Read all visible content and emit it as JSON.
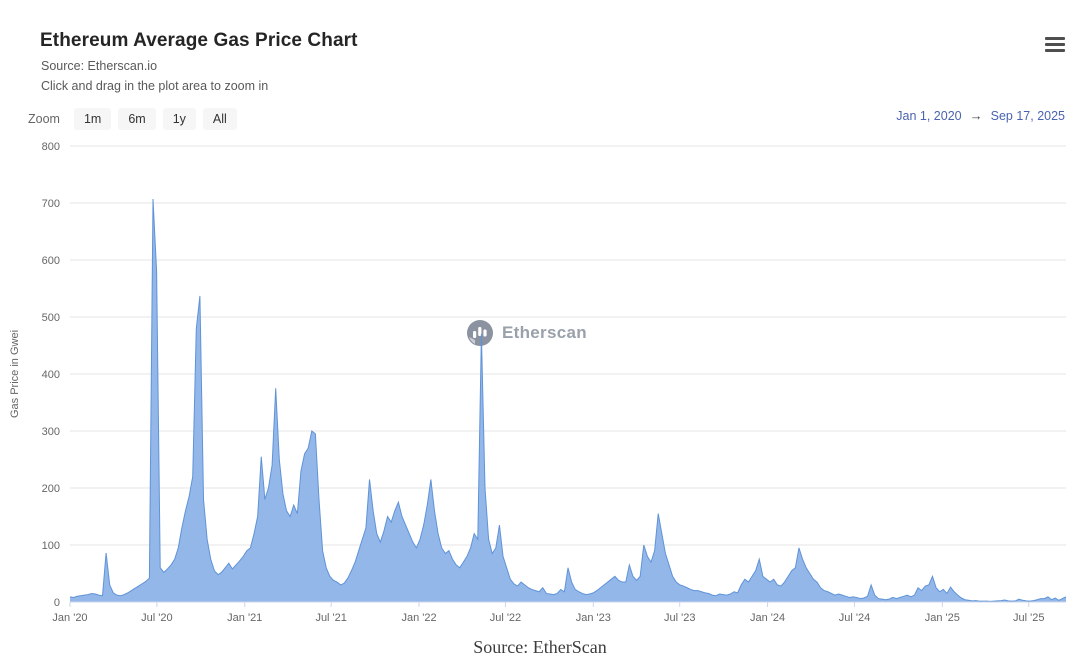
{
  "header": {
    "title": "Ethereum Average Gas Price Chart",
    "source_line": "Source: Etherscan.io",
    "hint_line": "Click and drag in the plot area to zoom in"
  },
  "toolbar": {
    "zoom_label": "Zoom",
    "buttons": [
      "1m",
      "6m",
      "1y",
      "All"
    ],
    "date_from": "Jan 1, 2020",
    "arrow": "→",
    "date_to": "Sep 17, 2025",
    "date_link_color": "#4a63af"
  },
  "watermark": {
    "text": "Etherscan"
  },
  "footer": {
    "source_text": "Source: EtherScan"
  },
  "chart_data": {
    "type": "area",
    "title": "Ethereum Average Gas Price Chart",
    "xlabel": "",
    "ylabel": "Gas Price in Gwei",
    "ylim": [
      0,
      800
    ],
    "yticks": [
      0,
      100,
      200,
      300,
      400,
      500,
      600,
      700,
      800
    ],
    "grid": true,
    "legend": false,
    "x_range": [
      "Jan 1, 2020",
      "Sep 17, 2025"
    ],
    "total_days": 2086,
    "xticks": [
      {
        "label": "Jan '20",
        "day": 0
      },
      {
        "label": "Jul '20",
        "day": 182
      },
      {
        "label": "Jan '21",
        "day": 366
      },
      {
        "label": "Jul '21",
        "day": 547
      },
      {
        "label": "Jan '22",
        "day": 731
      },
      {
        "label": "Jul '22",
        "day": 912
      },
      {
        "label": "Jan '23",
        "day": 1096
      },
      {
        "label": "Jul '23",
        "day": 1277
      },
      {
        "label": "Jan '24",
        "day": 1461
      },
      {
        "label": "Jul '24",
        "day": 1643
      },
      {
        "label": "Jan '25",
        "day": 1827
      },
      {
        "label": "Jul '25",
        "day": 2008
      }
    ],
    "colors": {
      "line": "#5f93d8",
      "fill": "#93b7e8",
      "grid": "#e6e6e6",
      "axis": "#ccd6eb"
    },
    "series": [
      {
        "name": "Average Gas Price (Gwei)",
        "cadence": "weekly, Jan 2020 - Sep 17 2025",
        "values": [
          9,
          8,
          10,
          11,
          12,
          13,
          15,
          14,
          12,
          11,
          86,
          30,
          16,
          12,
          11,
          13,
          16,
          20,
          24,
          28,
          32,
          36,
          42,
          707,
          580,
          60,
          52,
          58,
          65,
          75,
          95,
          130,
          160,
          185,
          220,
          480,
          537,
          180,
          110,
          75,
          55,
          48,
          52,
          60,
          68,
          58,
          65,
          72,
          80,
          90,
          95,
          120,
          150,
          255,
          180,
          200,
          240,
          375,
          250,
          190,
          160,
          150,
          170,
          155,
          230,
          260,
          270,
          300,
          295,
          180,
          90,
          60,
          45,
          38,
          35,
          30,
          33,
          42,
          55,
          70,
          90,
          110,
          130,
          215,
          160,
          120,
          105,
          125,
          150,
          140,
          160,
          175,
          150,
          135,
          120,
          105,
          95,
          110,
          135,
          170,
          215,
          160,
          120,
          95,
          85,
          90,
          75,
          65,
          60,
          70,
          80,
          95,
          120,
          110,
          470,
          200,
          110,
          85,
          95,
          135,
          80,
          60,
          40,
          32,
          28,
          35,
          30,
          25,
          22,
          20,
          18,
          25,
          15,
          14,
          13,
          15,
          22,
          18,
          60,
          35,
          22,
          18,
          15,
          13,
          14,
          16,
          20,
          25,
          30,
          35,
          40,
          45,
          38,
          35,
          35,
          65,
          45,
          38,
          45,
          100,
          80,
          70,
          90,
          155,
          120,
          85,
          65,
          45,
          35,
          30,
          28,
          25,
          22,
          20,
          20,
          18,
          16,
          15,
          12,
          11,
          14,
          13,
          12,
          14,
          18,
          16,
          30,
          40,
          35,
          45,
          55,
          75,
          45,
          40,
          35,
          40,
          30,
          28,
          35,
          45,
          55,
          60,
          95,
          75,
          60,
          50,
          40,
          35,
          25,
          20,
          18,
          15,
          12,
          14,
          12,
          10,
          8,
          9,
          8,
          6,
          7,
          10,
          30,
          12,
          6,
          5,
          4,
          5,
          8,
          6,
          8,
          10,
          12,
          9,
          12,
          25,
          20,
          28,
          30,
          45,
          25,
          18,
          22,
          15,
          26,
          18,
          12,
          7,
          4,
          3,
          2,
          2.5,
          1.5,
          1.5,
          1.5,
          1,
          1.5,
          2,
          2.5,
          3.5,
          2,
          1.5,
          2,
          5,
          3,
          2,
          1.5,
          2.5,
          4,
          6,
          6,
          9,
          4,
          7,
          3,
          6,
          9
        ]
      }
    ]
  }
}
